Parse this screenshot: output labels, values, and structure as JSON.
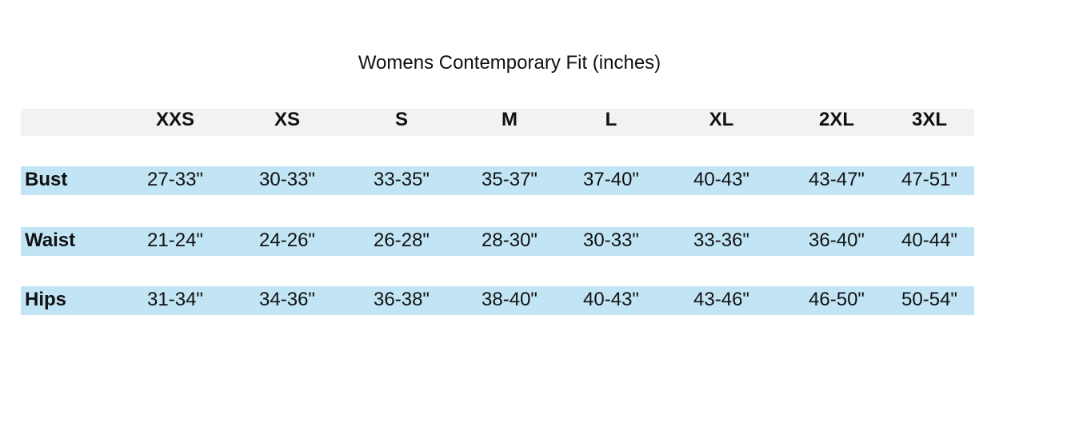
{
  "title": "Womens Contemporary Fit (inches)",
  "table": {
    "header": [
      "XXS",
      "XS",
      "S",
      "M",
      "L",
      "XL",
      "2XL",
      "3XL"
    ],
    "rows": [
      [
        "Bust",
        "27-33\"",
        "30-33\"",
        "33-35\"",
        "35-37\"",
        "37-40\"",
        "40-43\"",
        "43-47\"",
        "47-51\""
      ],
      [
        "Waist",
        "21-24\"",
        "24-26\"",
        "26-28\"",
        "28-30\"",
        "30-33\"",
        "33-36\"",
        "36-40\"",
        "40-44\""
      ],
      [
        "Hips",
        "31-34\"",
        "34-36\"",
        "36-38\"",
        "38-40\"",
        "40-43\"",
        "43-46\"",
        "46-50\"",
        "50-54\""
      ]
    ]
  }
}
